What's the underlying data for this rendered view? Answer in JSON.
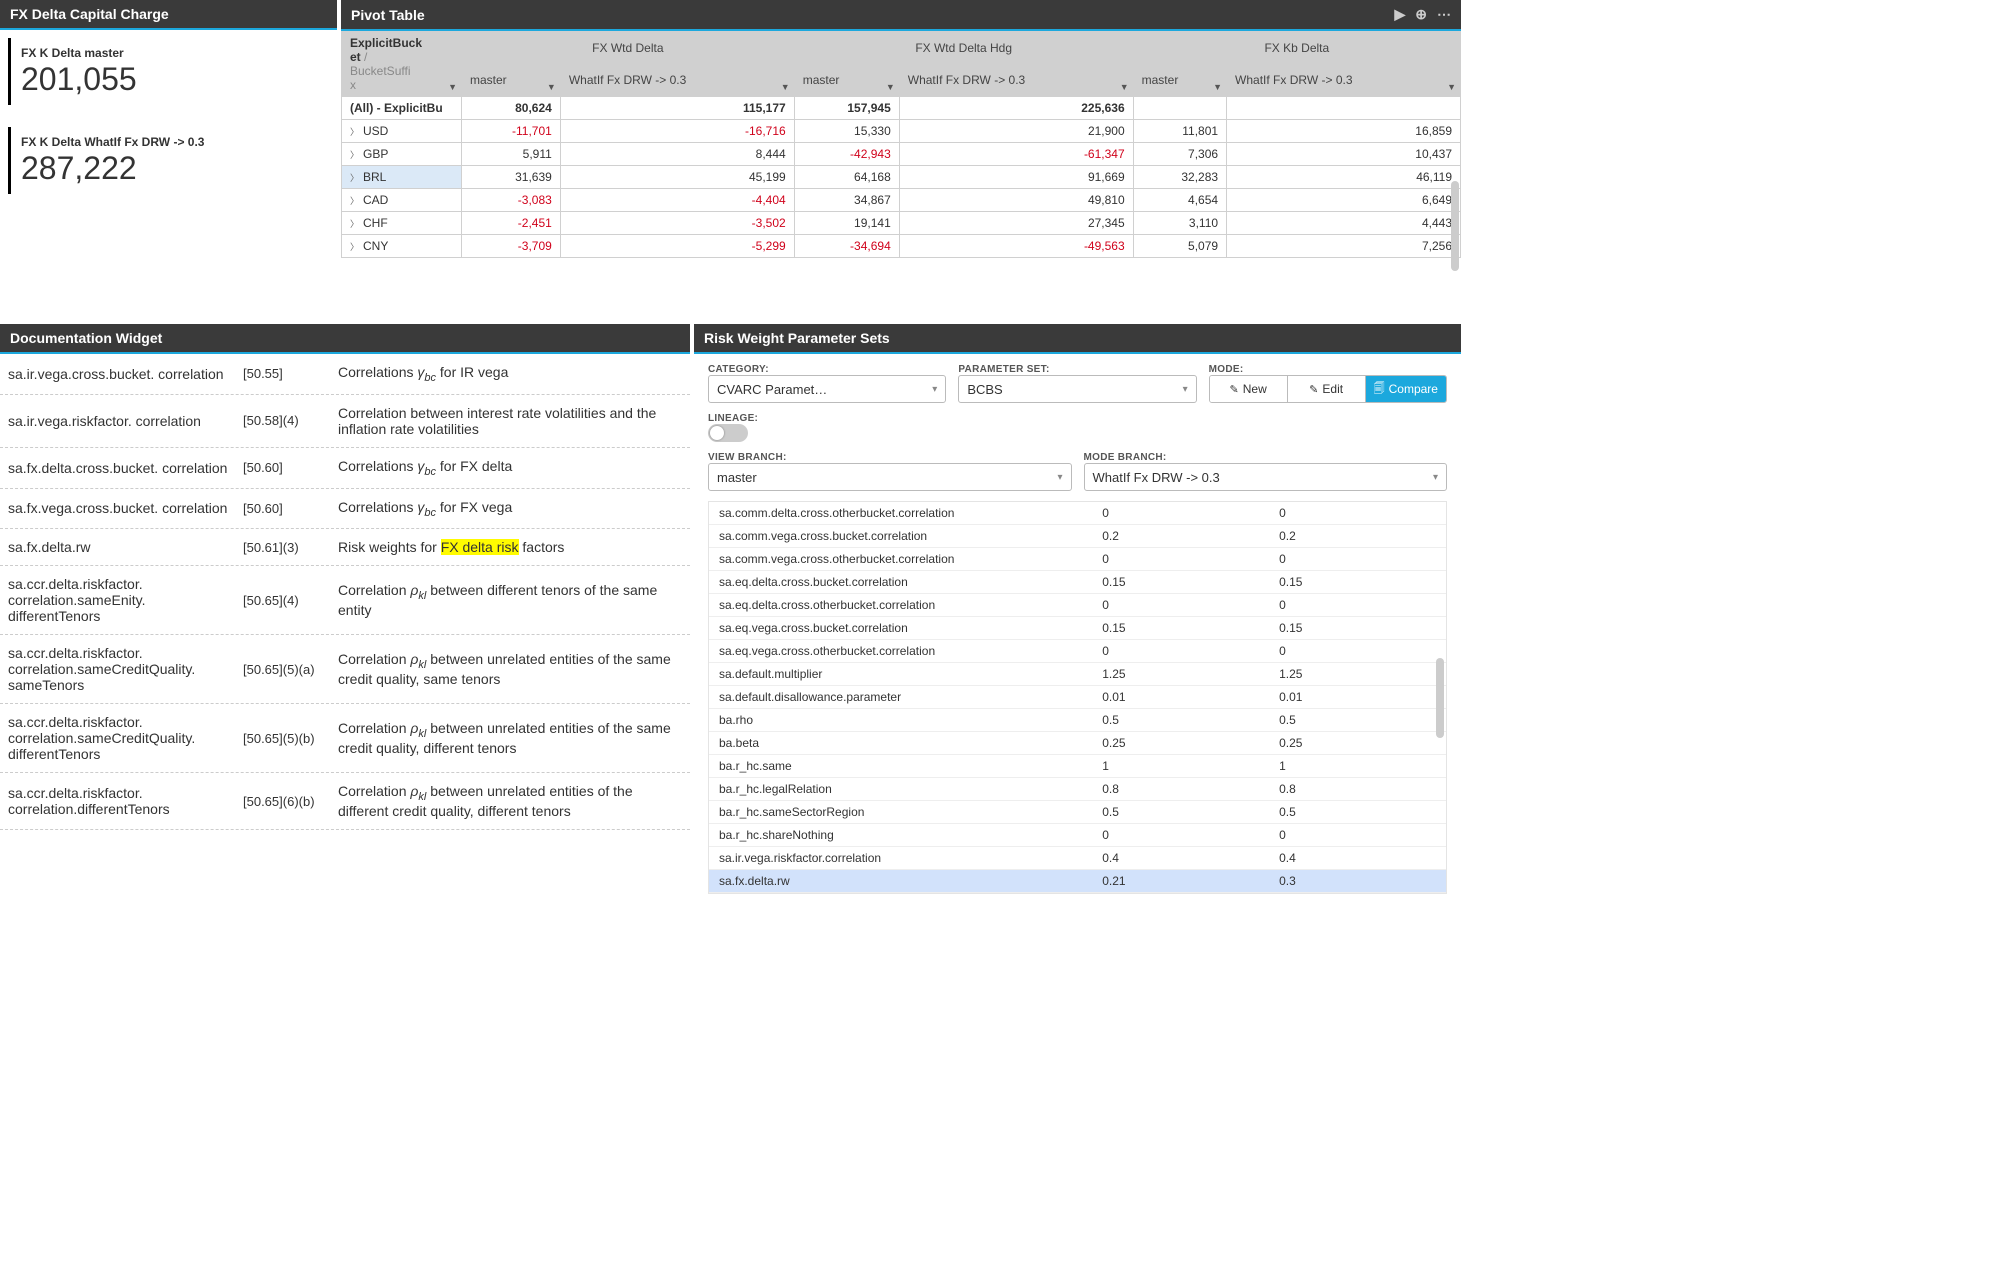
{
  "kpi": {
    "title": "FX Delta Capital Charge",
    "items": [
      {
        "label": "FX K Delta master",
        "value": "201,055"
      },
      {
        "label": "FX K Delta WhatIf Fx DRW -> 0.3",
        "value": "287,222"
      }
    ]
  },
  "pivot": {
    "title": "Pivot Table",
    "corner_line1": "ExplicitBucket",
    "corner_sep": " / ",
    "corner_line2": "BucketSuffix",
    "groups": [
      "FX Wtd Delta",
      "FX Wtd Delta Hdg",
      "FX Kb Delta"
    ],
    "subcols": [
      "master",
      "WhatIf Fx DRW -> 0.3"
    ],
    "total_label": "(All) - ExplicitBu",
    "rows": [
      {
        "label": "(All) - ExplicitBu",
        "total": true,
        "cells": [
          "80,624",
          "115,177",
          "157,945",
          "225,636",
          "",
          ""
        ]
      },
      {
        "label": "USD",
        "cells": [
          "-11,701",
          "-16,716",
          "15,330",
          "21,900",
          "11,801",
          "16,859"
        ]
      },
      {
        "label": "GBP",
        "cells": [
          "5,911",
          "8,444",
          "-42,943",
          "-61,347",
          "7,306",
          "10,437"
        ]
      },
      {
        "label": "BRL",
        "selected": true,
        "cells": [
          "31,639",
          "45,199",
          "64,168",
          "91,669",
          "32,283",
          "46,119"
        ]
      },
      {
        "label": "CAD",
        "cells": [
          "-3,083",
          "-4,404",
          "34,867",
          "49,810",
          "4,654",
          "6,649"
        ]
      },
      {
        "label": "CHF",
        "cells": [
          "-2,451",
          "-3,502",
          "19,141",
          "27,345",
          "3,110",
          "4,443"
        ]
      },
      {
        "label": "CNY",
        "cells": [
          "-3,709",
          "-5,299",
          "-34,694",
          "-49,563",
          "5,079",
          "7,256"
        ]
      }
    ]
  },
  "doc": {
    "title": "Documentation Widget",
    "rows": [
      {
        "key": "sa.ir.vega.cross.bucket. correlation",
        "ref": "[50.55]",
        "desc_pre": "Correlations ",
        "sym": "γ",
        "sub": "bc",
        "desc_post": " for IR vega"
      },
      {
        "key": "sa.ir.vega.riskfactor. correlation",
        "ref": "[50.58](4)",
        "desc_plain": "Correlation between interest rate volatilities and the inflation rate volatilities"
      },
      {
        "key": "sa.fx.delta.cross.bucket. correlation",
        "ref": "[50.60]",
        "desc_pre": "Correlations ",
        "sym": "γ",
        "sub": "bc",
        "desc_post": " for FX delta"
      },
      {
        "key": "sa.fx.vega.cross.bucket. correlation",
        "ref": "[50.60]",
        "desc_pre": "Correlations ",
        "sym": "γ",
        "sub": "bc",
        "desc_post": " for FX vega"
      },
      {
        "key": "sa.fx.delta.rw",
        "ref": "[50.61](3)",
        "desc_hl_pre": "Risk weights for ",
        "desc_hl": "FX delta risk",
        "desc_hl_post": " factors"
      },
      {
        "key": "sa.ccr.delta.riskfactor. correlation.sameEnity. differentTenors",
        "ref": "[50.65](4)",
        "desc_pre": "Correlation ",
        "sym": "ρ",
        "sub": "kl",
        "desc_post": " between different tenors of the same entity"
      },
      {
        "key": "sa.ccr.delta.riskfactor. correlation.sameCreditQuality. sameTenors",
        "ref": "[50.65](5)(a)",
        "desc_pre": "Correlation ",
        "sym": "ρ",
        "sub": "kl",
        "desc_post": " between unrelated entities of the same credit quality, same tenors"
      },
      {
        "key": "sa.ccr.delta.riskfactor. correlation.sameCreditQuality. differentTenors",
        "ref": "[50.65](5)(b)",
        "desc_pre": "Correlation ",
        "sym": "ρ",
        "sub": "kl",
        "desc_post": " between unrelated entities of the same credit quality, different tenors"
      },
      {
        "key": "sa.ccr.delta.riskfactor. correlation.differentTenors",
        "ref": "[50.65](6)(b)",
        "desc_pre": "Correlation ",
        "sym": "ρ",
        "sub": "kl",
        "desc_post": " between unrelated entities of the different credit quality, different tenors"
      }
    ]
  },
  "params": {
    "title": "Risk Weight Parameter Sets",
    "labels": {
      "category": "CATEGORY:",
      "paramset": "PARAMETER SET:",
      "mode": "MODE:",
      "lineage": "LINEAGE:",
      "view_branch": "VIEW BRANCH:",
      "mode_branch": "MODE BRANCH:"
    },
    "category_value": "CVARC Paramet…",
    "paramset_value": "BCBS",
    "mode_buttons": {
      "new": "New",
      "edit": "Edit",
      "compare": "Compare"
    },
    "view_branch_value": "master",
    "mode_branch_value": "WhatIf Fx DRW -> 0.3",
    "rows": [
      {
        "k": "sa.comm.delta.cross.otherbucket.correlation",
        "a": "0",
        "b": "0"
      },
      {
        "k": "sa.comm.vega.cross.bucket.correlation",
        "a": "0.2",
        "b": "0.2"
      },
      {
        "k": "sa.comm.vega.cross.otherbucket.correlation",
        "a": "0",
        "b": "0"
      },
      {
        "k": "sa.eq.delta.cross.bucket.correlation",
        "a": "0.15",
        "b": "0.15"
      },
      {
        "k": "sa.eq.delta.cross.otherbucket.correlation",
        "a": "0",
        "b": "0"
      },
      {
        "k": "sa.eq.vega.cross.bucket.correlation",
        "a": "0.15",
        "b": "0.15"
      },
      {
        "k": "sa.eq.vega.cross.otherbucket.correlation",
        "a": "0",
        "b": "0"
      },
      {
        "k": "sa.default.multiplier",
        "a": "1.25",
        "b": "1.25"
      },
      {
        "k": "sa.default.disallowance.parameter",
        "a": "0.01",
        "b": "0.01"
      },
      {
        "k": "ba.rho",
        "a": "0.5",
        "b": "0.5"
      },
      {
        "k": "ba.beta",
        "a": "0.25",
        "b": "0.25"
      },
      {
        "k": "ba.r_hc.same",
        "a": "1",
        "b": "1"
      },
      {
        "k": "ba.r_hc.legalRelation",
        "a": "0.8",
        "b": "0.8"
      },
      {
        "k": "ba.r_hc.sameSectorRegion",
        "a": "0.5",
        "b": "0.5"
      },
      {
        "k": "ba.r_hc.shareNothing",
        "a": "0",
        "b": "0"
      },
      {
        "k": "sa.ir.vega.riskfactor.correlation",
        "a": "0.4",
        "b": "0.4"
      },
      {
        "k": "sa.fx.delta.rw",
        "a": "0.21",
        "b": "0.3",
        "selected": true
      }
    ]
  },
  "colors": {
    "header_bg": "#3a3a3a",
    "accent": "#1ca8dd",
    "neg": "#d0021b",
    "highlight": "#fffb00",
    "row_sel": "#d2e2fb"
  }
}
